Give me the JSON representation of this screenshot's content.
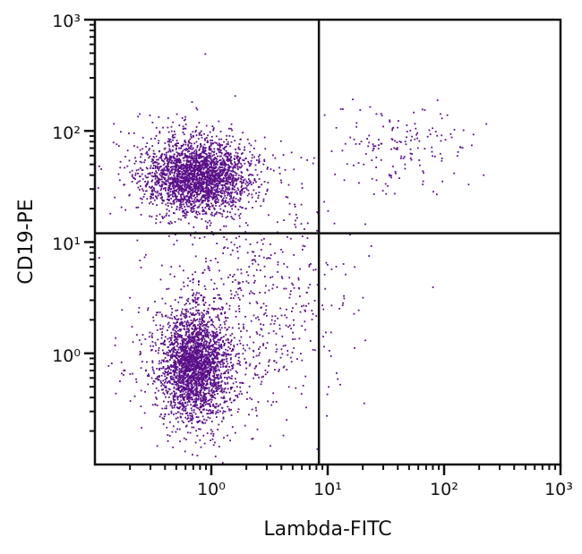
{
  "chart_data": {
    "type": "scatter",
    "title": "",
    "xlabel": "Lambda-FITC",
    "ylabel": "CD19-PE",
    "xscale": "log",
    "yscale": "log",
    "xlim": [
      0.1,
      1000
    ],
    "ylim": [
      0.1,
      1000
    ],
    "x_tick_values": [
      1,
      10,
      100,
      1000
    ],
    "x_tick_labels": [
      "10⁰",
      "10¹",
      "10²",
      "10³"
    ],
    "y_tick_values": [
      1,
      10,
      100,
      1000
    ],
    "y_tick_labels": [
      "10⁰",
      "10¹",
      "10²",
      "10³"
    ],
    "grid": false,
    "legend": "none",
    "quadrant_gates": {
      "x": 8.4,
      "y": 12
    },
    "point_color": "#5a1089",
    "populations": [
      {
        "geo_mean_x": 0.75,
        "geo_mean_y": 40,
        "spread_log_x": 0.22,
        "spread_log_y": 0.16,
        "count": 2600
      },
      {
        "geo_mean_x": 0.7,
        "geo_mean_y": 0.8,
        "spread_log_x": 0.15,
        "spread_log_y": 0.24,
        "count": 2600
      },
      {
        "geo_mean_x": 2.5,
        "geo_mean_y": 3,
        "spread_log_x": 0.35,
        "spread_log_y": 0.45,
        "count": 500
      },
      {
        "geo_mean_x": 40,
        "geo_mean_y": 70,
        "spread_log_x": 0.28,
        "spread_log_y": 0.18,
        "count": 160
      }
    ]
  }
}
